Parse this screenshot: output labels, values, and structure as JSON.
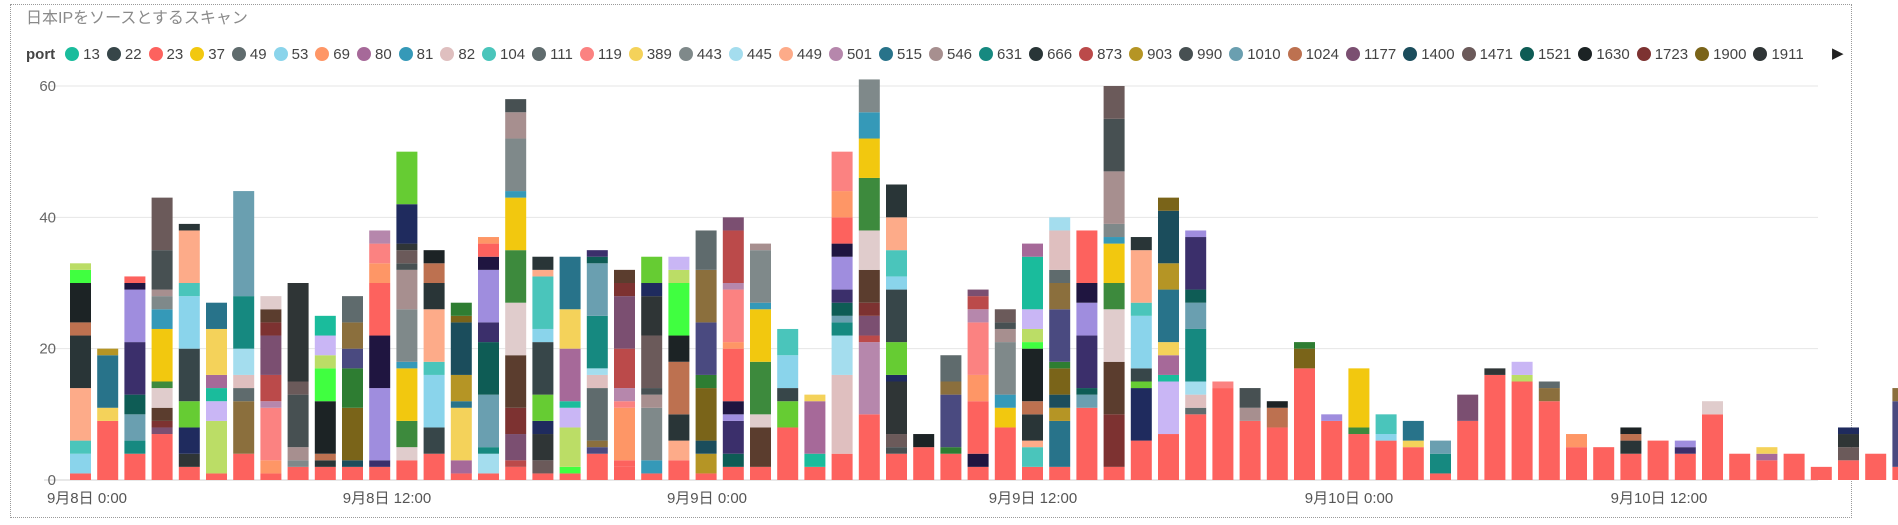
{
  "title": "日本IPをソースとするスキャン",
  "legend_next_icon": "triangle-right-icon",
  "chart_data": {
    "type": "bar",
    "stacked": true,
    "legend_title": "port",
    "legend": [
      {
        "name": "13",
        "color": "#1abc9c"
      },
      {
        "name": "22",
        "color": "#374649"
      },
      {
        "name": "23",
        "color": "#fd625e"
      },
      {
        "name": "37",
        "color": "#f2c80f"
      },
      {
        "name": "49",
        "color": "#5f6b6d"
      },
      {
        "name": "53",
        "color": "#8ad4eb"
      },
      {
        "name": "69",
        "color": "#fe9666"
      },
      {
        "name": "80",
        "color": "#a66999"
      },
      {
        "name": "81",
        "color": "#3599b8"
      },
      {
        "name": "82",
        "color": "#dfbfbf"
      },
      {
        "name": "104",
        "color": "#4ac5bb"
      },
      {
        "name": "111",
        "color": "#5f6b6d"
      },
      {
        "name": "119",
        "color": "#fb8281"
      },
      {
        "name": "389",
        "color": "#f4d25a"
      },
      {
        "name": "443",
        "color": "#7f898a"
      },
      {
        "name": "445",
        "color": "#a4ddee"
      },
      {
        "name": "449",
        "color": "#fdab89"
      },
      {
        "name": "501",
        "color": "#b687ac"
      },
      {
        "name": "515",
        "color": "#28738a"
      },
      {
        "name": "546",
        "color": "#a78f8f"
      },
      {
        "name": "631",
        "color": "#168980"
      },
      {
        "name": "666",
        "color": "#293537"
      },
      {
        "name": "873",
        "color": "#bb4a4a"
      },
      {
        "name": "903",
        "color": "#b59525"
      },
      {
        "name": "990",
        "color": "#475052"
      },
      {
        "name": "1010",
        "color": "#6a9fb0"
      },
      {
        "name": "1024",
        "color": "#bd7150"
      },
      {
        "name": "1177",
        "color": "#7b4f71"
      },
      {
        "name": "1400",
        "color": "#1b4d5c"
      },
      {
        "name": "1471",
        "color": "#6b5a5a"
      },
      {
        "name": "1521",
        "color": "#0e5c55"
      },
      {
        "name": "1630",
        "color": "#1c2325"
      },
      {
        "name": "1723",
        "color": "#7d3231"
      },
      {
        "name": "1900",
        "color": "#7a6419"
      },
      {
        "name": "1911",
        "color": "#2f3536"
      }
    ],
    "x_tick_labels": [
      "9月8日 0:00",
      "9月8日 12:00",
      "9月9日 0:00",
      "9月9日 12:00",
      "9月10日 0:00",
      "9月10日 12:00"
    ],
    "ylim": [
      0,
      60
    ],
    "y_ticks": [
      0,
      20,
      40,
      60
    ],
    "bars": [
      {
        "h": [
          1,
          3,
          2,
          8,
          8,
          2,
          6,
          2,
          1
        ]
      },
      {
        "h": [
          9,
          2,
          8,
          1
        ]
      },
      {
        "h": [
          4,
          2,
          4,
          3,
          8,
          8,
          1,
          1
        ]
      },
      {
        "h": [
          7,
          1,
          1,
          2,
          3,
          1,
          8,
          3,
          2,
          1,
          6,
          8
        ]
      },
      {
        "h": [
          2,
          2,
          4,
          4,
          8,
          8,
          2,
          8,
          1
        ]
      },
      {
        "h": [
          1,
          8,
          3,
          2,
          2,
          7,
          4
        ]
      },
      {
        "h": [
          4,
          8,
          2,
          2,
          4,
          8,
          16
        ]
      },
      {
        "h": [
          1,
          2,
          8,
          1,
          4,
          6,
          2,
          2,
          2
        ]
      },
      {
        "h": [
          2,
          1,
          2,
          8,
          2,
          15
        ]
      },
      {
        "h": [
          2,
          1,
          1,
          8,
          5,
          2,
          3,
          3
        ]
      },
      {
        "h": [
          2,
          1,
          8,
          6,
          3,
          4,
          4
        ]
      },
      {
        "h": [
          2,
          1,
          11,
          8,
          8,
          3,
          3,
          2
        ]
      },
      {
        "h": [
          3,
          2,
          4,
          8,
          1,
          8,
          6,
          1,
          2,
          1,
          6,
          8
        ]
      },
      {
        "h": [
          4,
          4,
          8,
          2,
          8,
          4,
          3,
          2
        ]
      },
      {
        "h": [
          1,
          2,
          8,
          1,
          4,
          8,
          1,
          2
        ]
      },
      {
        "h": [
          1,
          3,
          1,
          8,
          8,
          3,
          8,
          2,
          2,
          1
        ]
      },
      {
        "h": [
          2,
          1,
          4,
          4,
          8,
          8,
          8,
          8,
          1,
          8,
          4,
          2
        ]
      },
      {
        "h": [
          1,
          2,
          4,
          2,
          4,
          8,
          2,
          8,
          1,
          2
        ]
      },
      {
        "h": [
          1,
          1,
          6,
          3,
          1,
          8,
          6,
          8
        ]
      },
      {
        "h": [
          4,
          1,
          1,
          8,
          2,
          1,
          8,
          8,
          1,
          1
        ]
      },
      {
        "h": [
          2,
          1,
          8,
          1,
          2,
          6,
          8,
          2,
          2
        ]
      },
      {
        "h": [
          1,
          2,
          8,
          2,
          1,
          8,
          6,
          2,
          4
        ]
      },
      {
        "h": [
          3,
          3,
          4,
          8,
          4,
          8,
          2,
          2
        ]
      },
      {
        "h": [
          1,
          3,
          2,
          8,
          2,
          8,
          8,
          6
        ]
      },
      {
        "h": [
          2,
          2,
          5,
          1,
          2,
          8,
          1,
          8,
          1,
          8,
          2
        ]
      },
      {
        "h": [
          2,
          6,
          2,
          8,
          8,
          1,
          8,
          1
        ]
      },
      {
        "h": [
          8,
          4,
          2,
          5,
          4
        ]
      },
      {
        "h": [
          2,
          2,
          8,
          1
        ]
      },
      {
        "h": [
          4,
          12,
          6,
          2,
          1,
          2,
          2,
          5,
          2,
          4,
          4,
          6
        ]
      },
      {
        "h": [
          10,
          11,
          1,
          3,
          2,
          5,
          6,
          8,
          6,
          4,
          5
        ]
      },
      {
        "h": [
          4,
          1,
          2,
          8,
          1,
          5,
          8,
          2,
          4,
          5,
          5
        ]
      },
      {
        "h": [
          5,
          2
        ]
      },
      {
        "h": [
          4,
          1,
          8,
          2,
          4
        ]
      },
      {
        "h": [
          2,
          2,
          8,
          4,
          8,
          2,
          2,
          1
        ]
      },
      {
        "h": [
          8,
          3,
          2,
          8,
          2,
          1,
          2
        ]
      },
      {
        "h": [
          2,
          3,
          1,
          4,
          2,
          8,
          1,
          2,
          3,
          8,
          2
        ]
      },
      {
        "h": [
          2,
          7,
          2,
          2,
          4,
          1,
          8,
          4,
          2,
          6,
          2
        ]
      },
      {
        "h": [
          11,
          2,
          1,
          8,
          5,
          3,
          8
        ]
      },
      {
        "h": [
          2,
          8,
          8,
          8,
          4,
          6,
          1,
          2,
          8,
          8,
          5
        ]
      },
      {
        "h": [
          6,
          8,
          1,
          2,
          8,
          2,
          8,
          2
        ]
      },
      {
        "h": [
          7,
          8,
          1,
          3,
          2,
          8,
          4,
          8,
          2
        ]
      },
      {
        "h": [
          10,
          1,
          2,
          2,
          8,
          4,
          2,
          8,
          1
        ]
      },
      {
        "h": [
          14,
          1
        ]
      },
      {
        "h": [
          9,
          2,
          3
        ]
      },
      {
        "h": [
          8,
          3,
          1
        ]
      },
      {
        "h": [
          17,
          3,
          1
        ]
      },
      {
        "h": [
          9,
          1
        ]
      },
      {
        "h": [
          7,
          1,
          9
        ]
      },
      {
        "h": [
          6,
          1,
          3
        ]
      },
      {
        "h": [
          5,
          1,
          3
        ]
      },
      {
        "h": [
          1,
          3,
          2
        ]
      },
      {
        "h": [
          9,
          4
        ]
      },
      {
        "h": [
          16,
          1
        ]
      },
      {
        "h": [
          15,
          1,
          2
        ]
      },
      {
        "h": [
          12,
          2,
          1
        ]
      },
      {
        "h": [
          5,
          2
        ]
      },
      {
        "h": [
          5
        ]
      },
      {
        "h": [
          4,
          2,
          1,
          1
        ]
      },
      {
        "h": [
          6
        ]
      },
      {
        "h": [
          4,
          1,
          1
        ]
      },
      {
        "h": [
          10,
          2
        ]
      },
      {
        "h": [
          4
        ]
      },
      {
        "h": [
          3,
          1,
          1
        ]
      },
      {
        "h": [
          4
        ]
      },
      {
        "h": [
          2
        ]
      },
      {
        "h": [
          3,
          2,
          2,
          1
        ]
      },
      {
        "h": [
          4
        ]
      },
      {
        "h": [
          2,
          10,
          2
        ]
      }
    ]
  }
}
